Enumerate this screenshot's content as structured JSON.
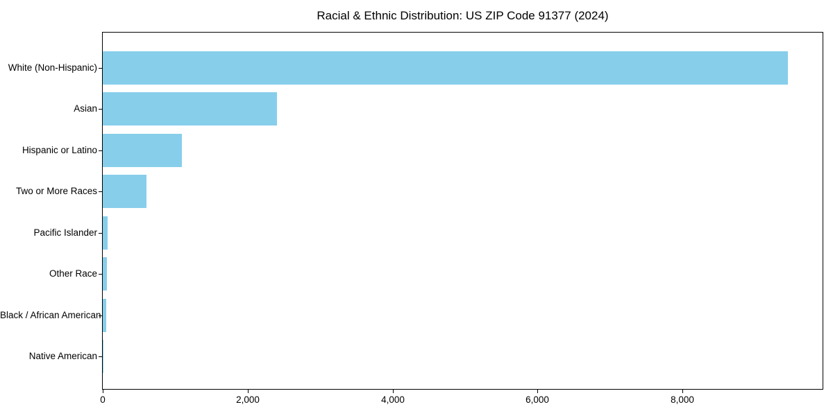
{
  "chart_data": {
    "type": "bar",
    "orientation": "horizontal",
    "title": "Racial & Ethnic Distribution: US ZIP Code 91377 (2024)",
    "categories": [
      "White (Non-Hispanic)",
      "Asian",
      "Hispanic or Latino",
      "Two or More Races",
      "Pacific Islander",
      "Other Race",
      "Black / African American",
      "Native American"
    ],
    "values": [
      9460,
      2400,
      1090,
      600,
      70,
      60,
      45,
      10
    ],
    "xlabel": "",
    "ylabel": "",
    "xlim": [
      0,
      9935
    ],
    "xticks": [
      0,
      2000,
      4000,
      6000,
      8000
    ],
    "xtick_labels": [
      "0",
      "2,000",
      "4,000",
      "6,000",
      "8,000"
    ],
    "grid": false,
    "legend": null,
    "bar_color": "#87CEEB",
    "axis_color": "#000000",
    "background_color": "#FFFFFF"
  }
}
